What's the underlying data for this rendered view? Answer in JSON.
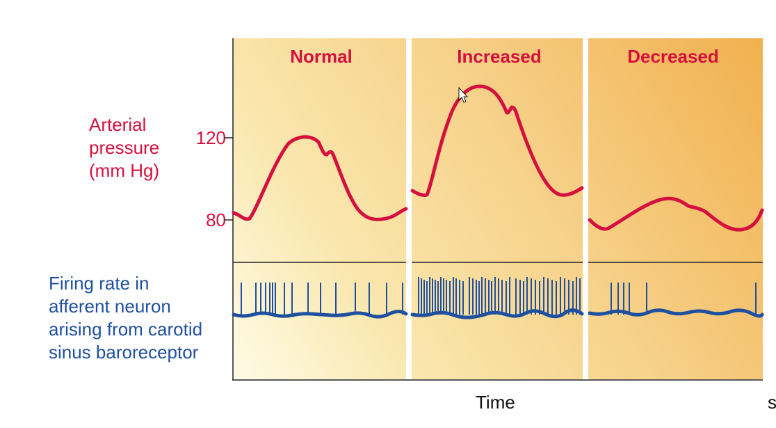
{
  "y_axis": {
    "label_lines": [
      "Arterial",
      "pressure",
      "(mm Hg)"
    ],
    "ticks": [
      "120",
      "80"
    ]
  },
  "firing_label_lines": [
    "Firing rate in",
    "afferent neuron",
    "arising from carotid",
    "sinus baroreceptor"
  ],
  "x_axis_label": "Time",
  "edge_text": "s",
  "panels": [
    {
      "title": "Normal",
      "pressure_peak_mmHg": 120,
      "pressure_trough_mmHg": 80
    },
    {
      "title": "Increased",
      "pressure_peak_mmHg": 146,
      "pressure_trough_mmHg": 97
    },
    {
      "title": "Decreased",
      "pressure_peak_mmHg": 91,
      "pressure_trough_mmHg": 76
    }
  ],
  "colors": {
    "pressure_trace": "#d5103e",
    "firing_trace": "#1f4f9f",
    "panel_light": "#fdf3c8",
    "panel_dark": "#f2b04e"
  },
  "cursor_icon": "mouse-pointer-icon"
}
